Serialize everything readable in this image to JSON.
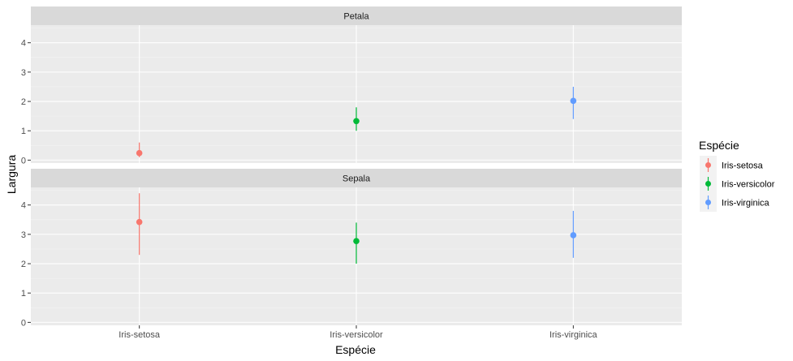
{
  "chart_data": {
    "type": "pointrange",
    "xlabel": "Espécie",
    "ylabel": "Largura",
    "categories": [
      "Iris-setosa",
      "Iris-versicolor",
      "Iris-virginica"
    ],
    "ylim": [
      -0.1,
      4.6
    ],
    "yticks": [
      0,
      1,
      2,
      3,
      4
    ],
    "legend": {
      "title": "Espécie",
      "position": "right",
      "entries": [
        "Iris-setosa",
        "Iris-versicolor",
        "Iris-virginica"
      ]
    },
    "colors": {
      "Iris-setosa": "#F8766D",
      "Iris-versicolor": "#00BA38",
      "Iris-virginica": "#619CFF"
    },
    "panels": [
      {
        "strip": "Petala",
        "points": [
          {
            "category": "Iris-setosa",
            "y": 0.24,
            "ymin": 0.1,
            "ymax": 0.6
          },
          {
            "category": "Iris-versicolor",
            "y": 1.33,
            "ymin": 1.0,
            "ymax": 1.8
          },
          {
            "category": "Iris-virginica",
            "y": 2.02,
            "ymin": 1.4,
            "ymax": 2.5
          }
        ]
      },
      {
        "strip": "Sepala",
        "points": [
          {
            "category": "Iris-setosa",
            "y": 3.42,
            "ymin": 2.3,
            "ymax": 4.4
          },
          {
            "category": "Iris-versicolor",
            "y": 2.77,
            "ymin": 2.0,
            "ymax": 3.4
          },
          {
            "category": "Iris-virginica",
            "y": 2.97,
            "ymin": 2.2,
            "ymax": 3.8
          }
        ]
      }
    ]
  }
}
